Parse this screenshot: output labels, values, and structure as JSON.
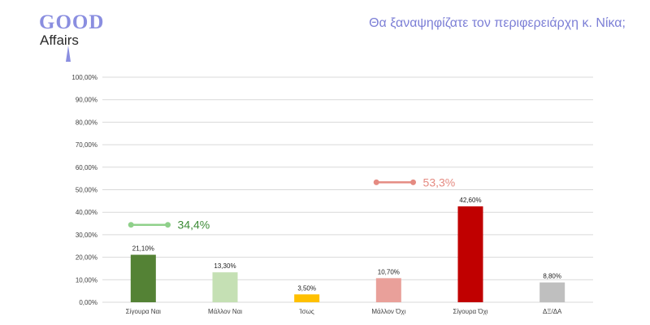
{
  "logo": {
    "line1": "GOOD",
    "line2": "Affairs",
    "color_good": "#8a8ee0",
    "color_tower": "#8a8ee0"
  },
  "title": "Θα ξαναψηφίζατε τον περιφερειάρχη κ. Νίκα;",
  "colors": {
    "title": "#7c7fd6",
    "grid": "#d9d9d9",
    "axis_text": "#404040",
    "label_text": "#222222"
  },
  "chart_data": {
    "type": "bar",
    "categories": [
      "Σίγουρα Ναι",
      "Μάλλον Ναι",
      "Ίσως",
      "Μάλλον Όχι",
      "Σίγουρα Όχι",
      "ΔΞ/ΔΑ"
    ],
    "values": [
      21.1,
      13.3,
      3.5,
      10.7,
      42.6,
      8.8
    ],
    "value_labels": [
      "21,10%",
      "13,30%",
      "3,50%",
      "10,70%",
      "42,60%",
      "8,80%"
    ],
    "bar_colors": [
      "#548235",
      "#c5e0b4",
      "#ffc000",
      "#e9a09a",
      "#c00000",
      "#bfbfbf"
    ],
    "ylim": [
      0,
      100
    ],
    "yticks": [
      0,
      10,
      20,
      30,
      40,
      50,
      60,
      70,
      80,
      90,
      100
    ],
    "ytick_labels": [
      "0,00%",
      "10,00%",
      "20,00%",
      "30,00%",
      "40,00%",
      "50,00%",
      "60,00%",
      "70,00%",
      "80,00%",
      "90,00%",
      "100,00%"
    ],
    "grid": true,
    "annotations": [
      {
        "text": "34,4%",
        "y": 34.4,
        "from_index": 0.35,
        "to_index": 0.8,
        "color": "#8fd08a",
        "text_color": "#3d8b37"
      },
      {
        "text": "53,3%",
        "y": 53.3,
        "from_index": 3.35,
        "to_index": 3.8,
        "color": "#e58b82",
        "text_color": "#e58b82"
      }
    ]
  }
}
